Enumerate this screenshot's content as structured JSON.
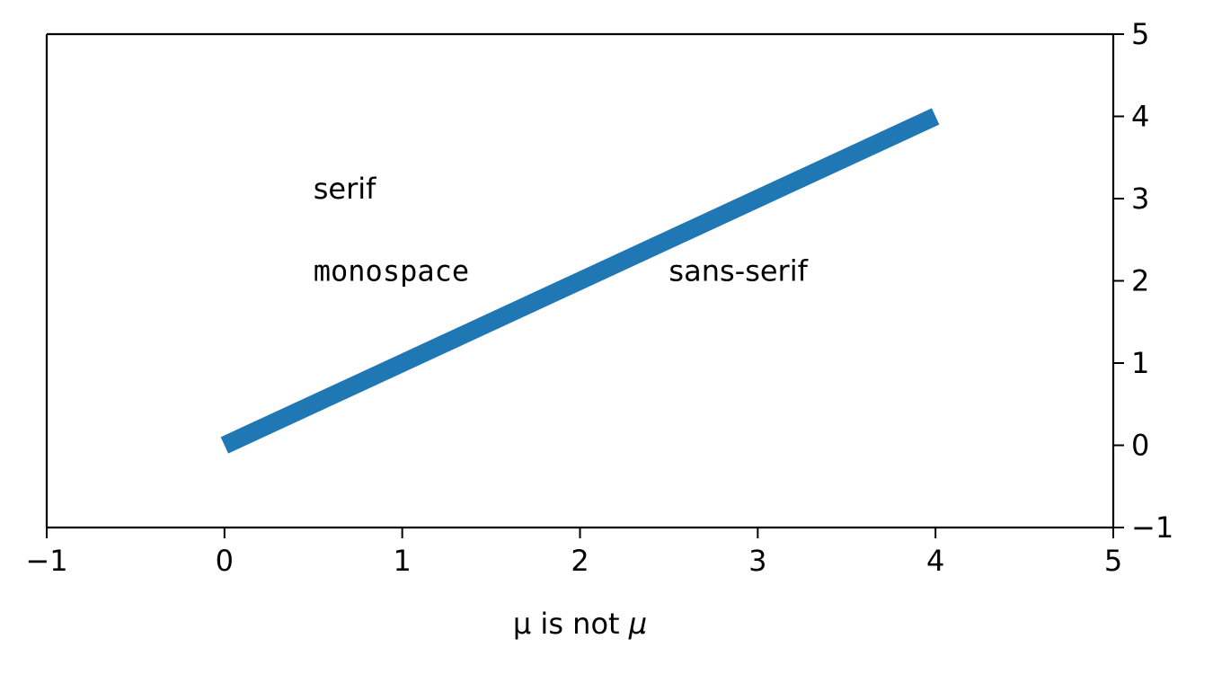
{
  "chart_data": {
    "type": "line",
    "title": "",
    "xlabel_plain": "μ is not",
    "xlabel_math": "μ",
    "ylabel": "",
    "xlim": [
      -1,
      5
    ],
    "ylim": [
      -1,
      5
    ],
    "xticks": [
      -1,
      0,
      1,
      2,
      3,
      4,
      5
    ],
    "yticks": [
      -1,
      0,
      1,
      2,
      3,
      4,
      5
    ],
    "xtick_labels": [
      "−1",
      "0",
      "1",
      "2",
      "3",
      "4",
      "5"
    ],
    "ytick_labels": [
      "−1",
      "0",
      "1",
      "2",
      "3",
      "4",
      "5"
    ],
    "y_axis_side": "right",
    "grid": false,
    "series": [
      {
        "x": [
          0,
          4
        ],
        "y": [
          0,
          4
        ],
        "color": "#1f77b4",
        "linewidth": "thick"
      }
    ],
    "annotations": [
      {
        "text": "serif",
        "x": 0.5,
        "y": 3,
        "font": "serif"
      },
      {
        "text": "monospace",
        "x": 0.5,
        "y": 2,
        "font": "monospace"
      },
      {
        "text": "sans-serif",
        "x": 2.5,
        "y": 2,
        "font": "sans-serif"
      }
    ]
  }
}
